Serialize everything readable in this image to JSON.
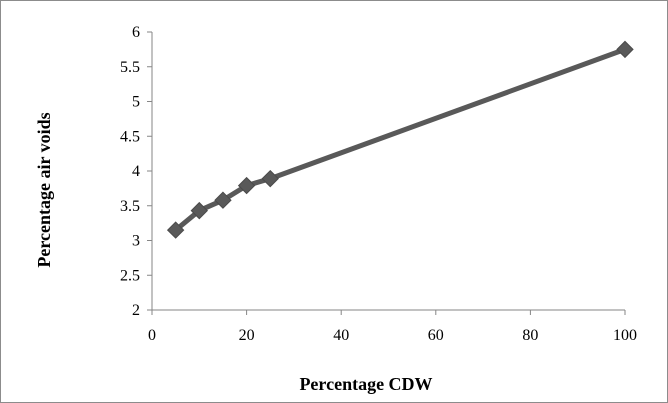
{
  "chart_data": {
    "type": "line",
    "title": "",
    "xlabel": "Percentage CDW",
    "ylabel": "Percentage  air voids",
    "xlim": [
      0,
      100
    ],
    "ylim": [
      2,
      6
    ],
    "x_ticks": [
      0,
      20,
      40,
      60,
      80,
      100
    ],
    "y_ticks": [
      "2",
      "2.5",
      "3",
      "3.5",
      "4",
      "4.5",
      "5",
      "5.5",
      "6"
    ],
    "grid": false,
    "legend": "none",
    "series": [
      {
        "x": [
          5,
          10,
          15,
          20,
          25,
          100
        ],
        "y": [
          3.15,
          3.43,
          3.58,
          3.79,
          3.89,
          5.75
        ],
        "marker": "diamond",
        "color": "#595959"
      }
    ]
  }
}
